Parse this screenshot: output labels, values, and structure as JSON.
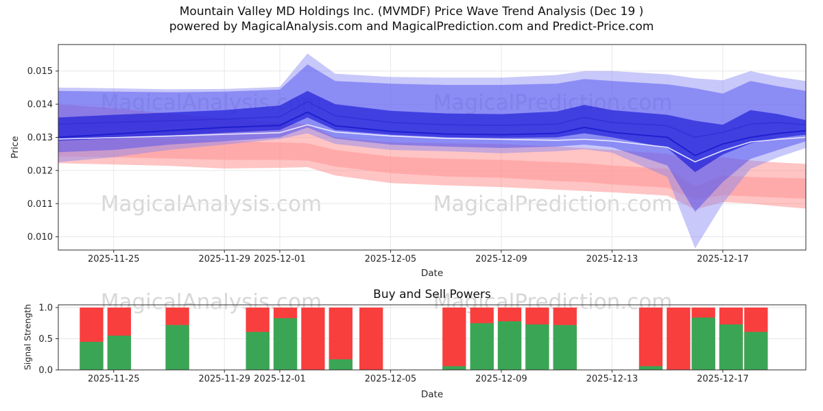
{
  "page": {
    "title_line1": "Mountain Valley MD Holdings Inc. (MVMDF) Price Wave Trend Analysis (Dec 19 )",
    "title_line2": "powered by MagicalAnalysis.com and MagicalPrediction.com and Predict-Price.com"
  },
  "watermarks": {
    "analysis": "MagicalAnalysis.com",
    "prediction": "MagicalPrediction.com"
  },
  "chart_data": [
    {
      "type": "area",
      "title": "",
      "xlabel": "Date",
      "ylabel": "Price",
      "x_unit": "days since 2025-11-23",
      "xlim": [
        0,
        27
      ],
      "ylim": [
        0.0096,
        0.0158
      ],
      "grid": true,
      "xticks": [
        {
          "day": 2,
          "label": "2025-11-25"
        },
        {
          "day": 6,
          "label": "2025-11-29"
        },
        {
          "day": 8,
          "label": "2025-12-01"
        },
        {
          "day": 12,
          "label": "2025-12-05"
        },
        {
          "day": 16,
          "label": "2025-12-09"
        },
        {
          "day": 20,
          "label": "2025-12-13"
        },
        {
          "day": 24,
          "label": "2025-12-17"
        }
      ],
      "yticks": [
        {
          "value": 0.01,
          "label": "0.010"
        },
        {
          "value": 0.011,
          "label": "0.011"
        },
        {
          "value": 0.012,
          "label": "0.012"
        },
        {
          "value": 0.013,
          "label": "0.013"
        },
        {
          "value": 0.014,
          "label": "0.014"
        },
        {
          "value": 0.015,
          "label": "0.015"
        }
      ],
      "x": [
        0,
        2,
        4,
        6,
        8,
        9,
        10,
        12,
        14,
        16,
        18,
        19,
        20,
        22,
        23,
        24,
        25,
        26,
        27
      ],
      "bands": [
        {
          "name": "red-outer-band",
          "color": "#ff7d7d",
          "opacity": 0.45,
          "hi": [
            0.014,
            0.01388,
            0.01372,
            0.01358,
            0.01345,
            0.0134,
            0.013,
            0.01285,
            0.01282,
            0.0128,
            0.01272,
            0.01268,
            0.01262,
            0.0125,
            0.01228,
            0.0124,
            0.0123,
            0.01224,
            0.0122
          ],
          "lo": [
            0.01222,
            0.01218,
            0.01214,
            0.01206,
            0.01208,
            0.0121,
            0.01185,
            0.01162,
            0.01155,
            0.0115,
            0.01142,
            0.01138,
            0.01134,
            0.01124,
            0.01082,
            0.01105,
            0.011,
            0.01092,
            0.01085
          ]
        },
        {
          "name": "red-core-band",
          "color": "#ff9595",
          "opacity": 0.55,
          "hi": [
            0.0131,
            0.01302,
            0.01295,
            0.01288,
            0.01285,
            0.01282,
            0.01262,
            0.01242,
            0.01235,
            0.01232,
            0.01225,
            0.01222,
            0.01215,
            0.01205,
            0.01152,
            0.01185,
            0.0118,
            0.01178,
            0.01176
          ],
          "lo": [
            0.01242,
            0.0124,
            0.01236,
            0.01232,
            0.01232,
            0.0123,
            0.01212,
            0.01192,
            0.01182,
            0.01178,
            0.01168,
            0.01165,
            0.01158,
            0.01148,
            0.01112,
            0.01125,
            0.01122,
            0.01118,
            0.01115
          ]
        },
        {
          "name": "blue-outer-band",
          "color": "#8585f5",
          "opacity": 0.45,
          "hi": [
            0.0145,
            0.01448,
            0.01445,
            0.01446,
            0.01452,
            0.01553,
            0.01492,
            0.01482,
            0.0148,
            0.0148,
            0.01488,
            0.015,
            0.015,
            0.0149,
            0.01478,
            0.01472,
            0.015,
            0.01482,
            0.0147
          ],
          "lo": [
            0.01225,
            0.0124,
            0.01262,
            0.01278,
            0.01295,
            0.01312,
            0.0128,
            0.01262,
            0.01258,
            0.01252,
            0.01258,
            0.01264,
            0.01254,
            0.0118,
            0.00965,
            0.011,
            0.01205,
            0.0124,
            0.01268
          ]
        },
        {
          "name": "blue-mid-band",
          "color": "#5050f0",
          "opacity": 0.5,
          "hi": [
            0.0144,
            0.01438,
            0.01436,
            0.01438,
            0.01444,
            0.0152,
            0.0147,
            0.01462,
            0.01458,
            0.01458,
            0.01462,
            0.01476,
            0.0147,
            0.0146,
            0.01448,
            0.01432,
            0.0147,
            0.01454,
            0.0144
          ],
          "lo": [
            0.01255,
            0.01262,
            0.01278,
            0.01288,
            0.013,
            0.0133,
            0.01296,
            0.01278,
            0.01272,
            0.01268,
            0.01272,
            0.01278,
            0.0127,
            0.01215,
            0.01075,
            0.01165,
            0.01235,
            0.01262,
            0.01288
          ]
        },
        {
          "name": "blue-core-band",
          "color": "#2020d8",
          "opacity": 0.7,
          "hi": [
            0.0136,
            0.01368,
            0.01375,
            0.01382,
            0.01396,
            0.0144,
            0.014,
            0.0138,
            0.01372,
            0.0137,
            0.01378,
            0.01398,
            0.01382,
            0.01368,
            0.0135,
            0.01338,
            0.01382,
            0.0137,
            0.01352
          ],
          "lo": [
            0.0129,
            0.01296,
            0.01305,
            0.01314,
            0.01322,
            0.0136,
            0.01322,
            0.01308,
            0.013,
            0.01298,
            0.013,
            0.01312,
            0.013,
            0.01268,
            0.01195,
            0.01248,
            0.01282,
            0.01298,
            0.01308
          ]
        }
      ],
      "lines": [
        {
          "name": "blue-upper-line",
          "color": "#2a2ad0",
          "opacity": 0.6,
          "width": 1.6,
          "values": [
            0.0134,
            0.01345,
            0.0135,
            0.01355,
            0.01362,
            0.01408,
            0.01365,
            0.01345,
            0.01338,
            0.01336,
            0.0134,
            0.0136,
            0.01345,
            0.01335,
            0.013,
            0.01315,
            0.0134,
            0.01345,
            0.01338
          ]
        },
        {
          "name": "blue-center-line",
          "color": "#1a1acc",
          "opacity": 0.85,
          "width": 2,
          "values": [
            0.013,
            0.0131,
            0.0132,
            0.0133,
            0.01336,
            0.01376,
            0.01335,
            0.01318,
            0.0131,
            0.01308,
            0.01312,
            0.0133,
            0.01315,
            0.013,
            0.01245,
            0.0128,
            0.013,
            0.01312,
            0.0132
          ]
        },
        {
          "name": "white-trace-line",
          "color": "#f4f4ff",
          "opacity": 0.9,
          "width": 1.6,
          "values": [
            0.01295,
            0.01299,
            0.01304,
            0.01309,
            0.01314,
            0.01338,
            0.01316,
            0.01304,
            0.01297,
            0.01294,
            0.01291,
            0.01294,
            0.01289,
            0.0127,
            0.01226,
            0.0126,
            0.01286,
            0.01294,
            0.013
          ]
        }
      ]
    },
    {
      "type": "bar",
      "title": "Buy and Sell Powers",
      "xlabel": "Date",
      "ylabel": "Signal Strength",
      "x_unit": "days since 2025-11-23",
      "xlim": [
        0,
        27
      ],
      "ylim": [
        0,
        1.044
      ],
      "grid": true,
      "bar_width_days": 0.85,
      "colors": {
        "sell": "#f93e3e",
        "buy": "#3aa655"
      },
      "xticks": [
        {
          "day": 2,
          "label": "2025-11-25"
        },
        {
          "day": 6,
          "label": "2025-11-29"
        },
        {
          "day": 8,
          "label": "2025-12-01"
        },
        {
          "day": 12,
          "label": "2025-12-05"
        },
        {
          "day": 16,
          "label": "2025-12-09"
        },
        {
          "day": 20,
          "label": "2025-12-13"
        },
        {
          "day": 24,
          "label": "2025-12-17"
        }
      ],
      "yticks": [
        {
          "value": 0.0,
          "label": "0.0"
        },
        {
          "value": 0.5,
          "label": "0.5"
        },
        {
          "value": 1.0,
          "label": "1.0"
        }
      ],
      "bars": [
        {
          "day": 1.2,
          "sell": 1.0,
          "buy": 0.45
        },
        {
          "day": 2.2,
          "sell": 1.0,
          "buy": 0.55
        },
        {
          "day": 4.3,
          "sell": 1.0,
          "buy": 0.72
        },
        {
          "day": 7.2,
          "sell": 1.0,
          "buy": 0.61
        },
        {
          "day": 8.2,
          "sell": 1.0,
          "buy": 0.83
        },
        {
          "day": 9.2,
          "sell": 1.0,
          "buy": 0.0
        },
        {
          "day": 10.2,
          "sell": 1.0,
          "buy": 0.17
        },
        {
          "day": 11.3,
          "sell": 1.0,
          "buy": 0.0
        },
        {
          "day": 14.3,
          "sell": 1.0,
          "buy": 0.06
        },
        {
          "day": 15.3,
          "sell": 1.0,
          "buy": 0.75
        },
        {
          "day": 16.3,
          "sell": 1.0,
          "buy": 0.78
        },
        {
          "day": 17.3,
          "sell": 1.0,
          "buy": 0.73
        },
        {
          "day": 18.3,
          "sell": 1.0,
          "buy": 0.72
        },
        {
          "day": 21.4,
          "sell": 1.0,
          "buy": 0.06
        },
        {
          "day": 22.4,
          "sell": 1.0,
          "buy": 0.0
        },
        {
          "day": 23.3,
          "sell": 1.0,
          "buy": 0.84
        },
        {
          "day": 24.3,
          "sell": 1.0,
          "buy": 0.73
        },
        {
          "day": 25.2,
          "sell": 1.0,
          "buy": 0.61
        }
      ]
    }
  ]
}
